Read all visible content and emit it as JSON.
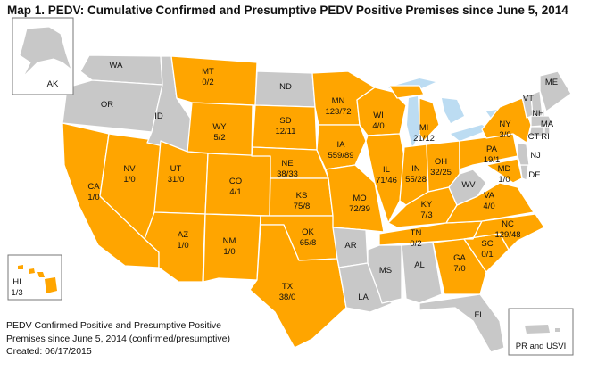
{
  "title": "Map 1.  PEDV:  Cumulative Confirmed and Presumptive PEDV Positive Premises since June 5, 2014",
  "colors": {
    "affected": "#ffa500",
    "unaffected": "#c8c8c8",
    "water": "#bcdcf2",
    "border": "#ffffff"
  },
  "states": [
    {
      "abbr": "WA",
      "counts": ""
    },
    {
      "abbr": "OR",
      "counts": ""
    },
    {
      "abbr": "CA",
      "counts": "1/0"
    },
    {
      "abbr": "NV",
      "counts": "1/0"
    },
    {
      "abbr": "ID",
      "counts": ""
    },
    {
      "abbr": "MT",
      "counts": "0/2"
    },
    {
      "abbr": "WY",
      "counts": "5/2"
    },
    {
      "abbr": "UT",
      "counts": "31/0"
    },
    {
      "abbr": "AZ",
      "counts": "1/0"
    },
    {
      "abbr": "CO",
      "counts": "4/1"
    },
    {
      "abbr": "NM",
      "counts": "1/0"
    },
    {
      "abbr": "ND",
      "counts": ""
    },
    {
      "abbr": "SD",
      "counts": "12/11"
    },
    {
      "abbr": "NE",
      "counts": "38/33"
    },
    {
      "abbr": "KS",
      "counts": "75/8"
    },
    {
      "abbr": "OK",
      "counts": "65/8"
    },
    {
      "abbr": "TX",
      "counts": "38/0"
    },
    {
      "abbr": "MN",
      "counts": "123/72"
    },
    {
      "abbr": "IA",
      "counts": "559/89"
    },
    {
      "abbr": "MO",
      "counts": "72/39"
    },
    {
      "abbr": "AR",
      "counts": ""
    },
    {
      "abbr": "LA",
      "counts": ""
    },
    {
      "abbr": "WI",
      "counts": "4/0"
    },
    {
      "abbr": "IL",
      "counts": "71/46"
    },
    {
      "abbr": "MI",
      "counts": "21/12"
    },
    {
      "abbr": "IN",
      "counts": "55/28"
    },
    {
      "abbr": "OH",
      "counts": "32/25"
    },
    {
      "abbr": "KY",
      "counts": "7/3"
    },
    {
      "abbr": "TN",
      "counts": "0/2"
    },
    {
      "abbr": "MS",
      "counts": ""
    },
    {
      "abbr": "AL",
      "counts": ""
    },
    {
      "abbr": "GA",
      "counts": "7/0"
    },
    {
      "abbr": "FL",
      "counts": ""
    },
    {
      "abbr": "SC",
      "counts": "0/1"
    },
    {
      "abbr": "NC",
      "counts": "129/48"
    },
    {
      "abbr": "VA",
      "counts": "4/0"
    },
    {
      "abbr": "WV",
      "counts": ""
    },
    {
      "abbr": "PA",
      "counts": "19/1"
    },
    {
      "abbr": "NY",
      "counts": "3/0"
    },
    {
      "abbr": "MD",
      "counts": "1/0"
    },
    {
      "abbr": "DE",
      "counts": ""
    },
    {
      "abbr": "NJ",
      "counts": ""
    },
    {
      "abbr": "VT",
      "counts": ""
    },
    {
      "abbr": "NH",
      "counts": ""
    },
    {
      "abbr": "ME",
      "counts": ""
    },
    {
      "abbr": "MA",
      "counts": ""
    },
    {
      "abbr": "CT",
      "counts": ""
    },
    {
      "abbr": "RI",
      "counts": ""
    },
    {
      "abbr": "AK",
      "counts": ""
    },
    {
      "abbr": "HI",
      "counts": "1/3"
    }
  ],
  "inset_pr": {
    "label": "PR and USVI"
  },
  "caption": {
    "line1": "PEDV Confirmed Positive and Presumptive Positive",
    "line2": "Premises since June 5, 2014 (confirmed/presumptive)",
    "line3": "Created: 06/17/2015"
  }
}
